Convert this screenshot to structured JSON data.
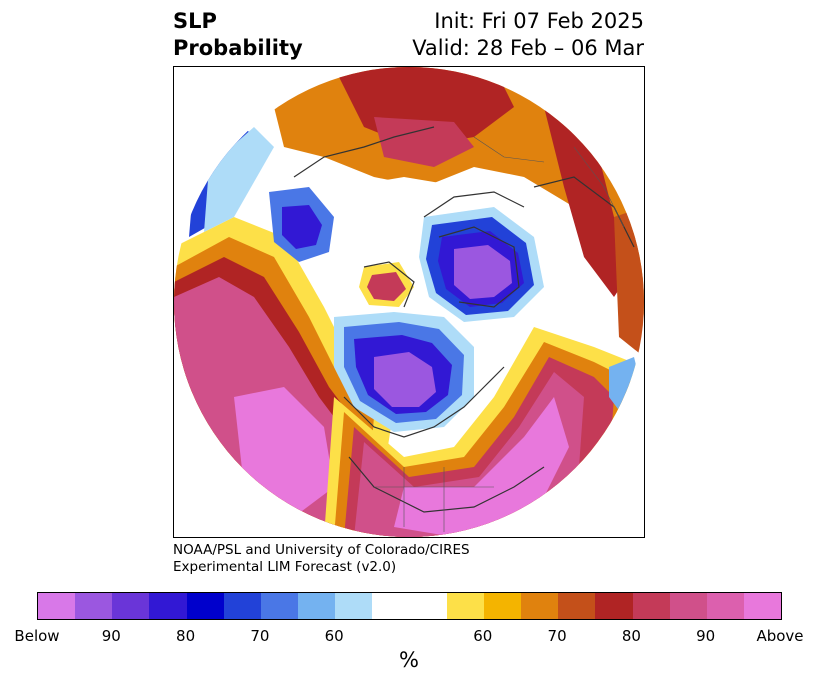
{
  "title": {
    "variable": "SLP",
    "quantity": "Probability",
    "init": "Init: Fri 07 Feb 2025",
    "valid": "Valid: 28 Feb – 06 Mar"
  },
  "credit": {
    "line1": "NOAA/PSL and University of Colorado/CIRES",
    "line2": "Experimental LIM Forecast (v2.0)"
  },
  "colorbar": {
    "unit": "%",
    "colors": [
      "#d878e8",
      "#9b57e0",
      "#6a35d8",
      "#3218d4",
      "#0000cc",
      "#2242d8",
      "#4a77e6",
      "#74b2f0",
      "#aedcf8",
      "#ffffff",
      "#ffffff",
      "#fde048",
      "#f4b400",
      "#e0820e",
      "#c4501a",
      "#b02424",
      "#c43a58",
      "#d0508a",
      "#dc60ae",
      "#e878dc"
    ],
    "labels": [
      "Below",
      "90",
      "80",
      "70",
      "60",
      "60",
      "70",
      "80",
      "90",
      "Above"
    ]
  },
  "map": {
    "projection": "north-polar-stereographic",
    "regions": {
      "north_america_high": "above-90",
      "north_pacific_high": "above-90",
      "atlantic_south_high": "above-80",
      "eurasia_north_high": "above-80",
      "greenland_low": "below-90",
      "hudson_bay_low": "below-90",
      "canada_west_low": "below-70",
      "gulf_of_alaska_low": "below-70"
    }
  }
}
